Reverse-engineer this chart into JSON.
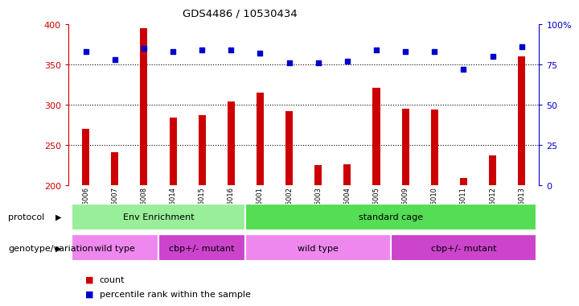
{
  "title": "GDS4486 / 10530434",
  "samples": [
    "GSM766006",
    "GSM766007",
    "GSM766008",
    "GSM766014",
    "GSM766015",
    "GSM766016",
    "GSM766001",
    "GSM766002",
    "GSM766003",
    "GSM766004",
    "GSM766005",
    "GSM766009",
    "GSM766010",
    "GSM766011",
    "GSM766012",
    "GSM766013"
  ],
  "counts": [
    270,
    241,
    395,
    284,
    287,
    304,
    315,
    292,
    225,
    226,
    321,
    295,
    294,
    209,
    237,
    360
  ],
  "percentiles": [
    83,
    78,
    85,
    83,
    84,
    84,
    82,
    76,
    76,
    77,
    84,
    83,
    83,
    72,
    80,
    86
  ],
  "ylim_left": [
    200,
    400
  ],
  "ylim_right": [
    0,
    100
  ],
  "bar_color": "#cc0000",
  "dot_color": "#0000cc",
  "protocol_groups": [
    {
      "label": "Env Enrichment",
      "start": 0,
      "end": 6,
      "color": "#99ee99"
    },
    {
      "label": "standard cage",
      "start": 6,
      "end": 16,
      "color": "#55dd55"
    }
  ],
  "genotype_groups": [
    {
      "label": "wild type",
      "start": 0,
      "end": 3,
      "color": "#ee88ee"
    },
    {
      "label": "cbp+/- mutant",
      "start": 3,
      "end": 6,
      "color": "#cc44cc"
    },
    {
      "label": "wild type",
      "start": 6,
      "end": 11,
      "color": "#ee88ee"
    },
    {
      "label": "cbp+/- mutant",
      "start": 11,
      "end": 16,
      "color": "#cc44cc"
    }
  ],
  "left_tick_color": "#cc0000",
  "right_tick_color": "#0000cc",
  "protocol_label": "protocol",
  "genotype_label": "genotype/variation",
  "legend_count": "count",
  "legend_percentile": "percentile rank within the sample",
  "background_color": "#ffffff",
  "plot_bg_color": "#ffffff"
}
